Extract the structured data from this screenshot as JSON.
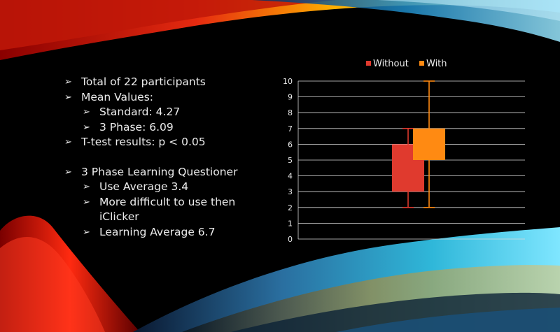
{
  "bullets": [
    {
      "level": 0,
      "text": "Total of 22 participants"
    },
    {
      "level": 0,
      "text": "Mean Values:"
    },
    {
      "level": 1,
      "text": "Standard: 4.27"
    },
    {
      "level": 1,
      "text": "3 Phase: 6.09"
    },
    {
      "level": 0,
      "text": "T-test results: p < 0.05"
    },
    {
      "level": -1,
      "text": ""
    },
    {
      "level": 0,
      "text": "3 Phase Learning Questioner"
    },
    {
      "level": 1,
      "text": "Use Average 3.4"
    },
    {
      "level": 1,
      "text": "More difficult to use then iClicker"
    },
    {
      "level": 1,
      "text": "Learning Average 6.7"
    }
  ],
  "bullet_glyph": "➢",
  "chart_data": {
    "type": "box",
    "ylim": [
      0,
      10
    ],
    "yticks": [
      0,
      1,
      2,
      3,
      4,
      5,
      6,
      7,
      8,
      9,
      10
    ],
    "grid": true,
    "legend_position": "top",
    "series": [
      {
        "name": "Without",
        "color": "#e03a2e",
        "min": 2,
        "q1": 3,
        "q3": 6,
        "max": 7
      },
      {
        "name": "With",
        "color": "#ff8a12",
        "min": 2,
        "q1": 5,
        "q3": 7,
        "max": 10
      }
    ]
  },
  "colors": {
    "background": "#000000",
    "text": "#ececec",
    "grid": "#d9d9d9"
  }
}
